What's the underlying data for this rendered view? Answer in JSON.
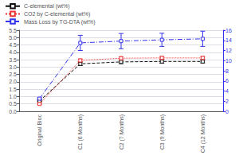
{
  "chart_data": {
    "type": "line",
    "categories": [
      "Original Bioc",
      "C1 (6 Months)",
      "C2 (7 Months)",
      "C3 (9 Months)",
      "C4 (12 Months)"
    ],
    "series": [
      {
        "name": "C-elemental (wt%)",
        "color": "#111111",
        "line_style": "dashed",
        "marker": "square",
        "values": [
          0.7,
          3.22,
          3.35,
          3.38,
          3.38
        ],
        "errors": [
          0.05,
          0.12,
          0.12,
          0.12,
          0.1
        ]
      },
      {
        "name": "CO2 by C-elemental (wt%)",
        "color": "#ee3333",
        "line_style": "dotted",
        "marker": "square",
        "values": [
          0.5,
          3.45,
          3.6,
          3.62,
          3.62
        ],
        "errors": [
          0.05,
          0.1,
          0.1,
          0.1,
          0.1
        ]
      },
      {
        "name": "Mass Loss by TG-DTA (wt%)",
        "color": "#3333ee",
        "line_style": "dashdot",
        "marker": "square",
        "axis": "y2",
        "values": [
          2.5,
          13.5,
          13.85,
          14.1,
          14.3
        ],
        "errors": [
          0.2,
          1.5,
          1.5,
          1.3,
          1.5
        ]
      }
    ],
    "ylim": [
      0.0,
      5.5
    ],
    "yticks": [
      {
        "value": 0,
        "label": "0.0"
      },
      0.5,
      {
        "value": 1,
        "label": "1.0"
      },
      1.5,
      {
        "value": 2,
        "label": "2.0"
      },
      2.5,
      {
        "value": 3,
        "label": "3.0"
      },
      3.5,
      {
        "value": 4,
        "label": "4.0"
      },
      4.5,
      {
        "value": 5,
        "label": "5.0"
      },
      5.5
    ],
    "y2lim": [
      0,
      16
    ],
    "y2ticks": [
      0,
      2,
      4,
      6,
      8,
      10,
      12,
      14,
      16
    ],
    "grid": true,
    "legend": "upper left"
  }
}
